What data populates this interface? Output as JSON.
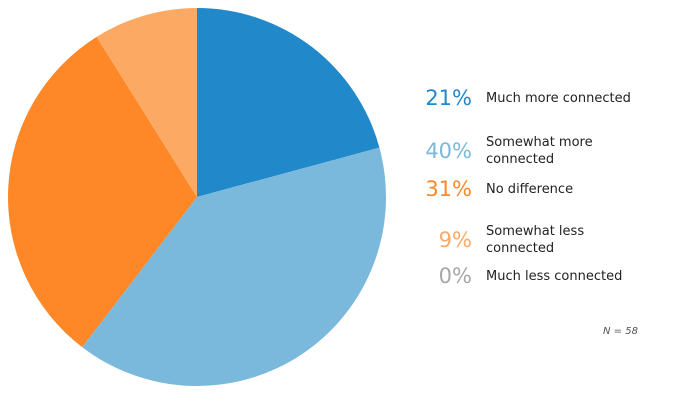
{
  "chart_data": {
    "type": "pie",
    "slices": [
      {
        "label": "Much more connected",
        "value": 21,
        "display": "21%",
        "color": "#2188c9"
      },
      {
        "label": "Somewhat more connected",
        "value": 40,
        "display": "40%",
        "color": "#7ab9db"
      },
      {
        "label": "No difference",
        "value": 31,
        "display": "31%",
        "color": "#fe8827"
      },
      {
        "label": "Somewhat less connected",
        "value": 9,
        "display": "9%",
        "color": "#fcaa63"
      },
      {
        "label": "Much less connected",
        "value": 0,
        "display": "0%",
        "color": "#a7a7a7"
      }
    ],
    "legend_placement": "right",
    "note": "N = 58"
  }
}
